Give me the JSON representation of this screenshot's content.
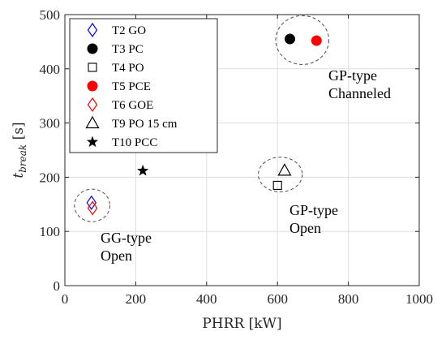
{
  "chart_data": {
    "type": "scatter",
    "xlabel": "PHRR [kW]",
    "ylabel_main": "t",
    "ylabel_sub": "break",
    "ylabel_unit": " [s]",
    "xlim": [
      0,
      1000
    ],
    "ylim": [
      0,
      500
    ],
    "xticks": [
      0,
      200,
      400,
      600,
      800,
      1000
    ],
    "yticks": [
      0,
      100,
      200,
      300,
      400,
      500
    ],
    "grid": true,
    "legend_position": "top-left",
    "series": [
      {
        "name": "T2 GO",
        "marker": "diamond-open",
        "color": "#0000ff",
        "points": [
          {
            "x": 75,
            "y": 153
          }
        ]
      },
      {
        "name": "T3 PC",
        "marker": "circle-filled",
        "color": "#000000",
        "points": [
          {
            "x": 635,
            "y": 455
          }
        ]
      },
      {
        "name": "T4 PO",
        "marker": "square-open",
        "color": "#000000",
        "points": [
          {
            "x": 600,
            "y": 185
          }
        ]
      },
      {
        "name": "T5 PCE",
        "marker": "circle-filled",
        "color": "#ff0000",
        "points": [
          {
            "x": 710,
            "y": 452
          }
        ]
      },
      {
        "name": "T6 GOE",
        "marker": "diamond-open",
        "color": "#ff0000",
        "points": [
          {
            "x": 78,
            "y": 143
          }
        ]
      },
      {
        "name": "T9 PO 15 cm",
        "marker": "triangle-open",
        "color": "#000000",
        "points": [
          {
            "x": 620,
            "y": 212
          }
        ]
      },
      {
        "name": "T10 PCC",
        "marker": "star-filled",
        "color": "#000000",
        "points": [
          {
            "x": 220,
            "y": 212
          }
        ]
      }
    ],
    "groups": [
      {
        "label_lines": [
          "GG-type",
          "Open"
        ],
        "center": {
          "x": 77,
          "y": 148
        },
        "radius": {
          "x": 50,
          "y": 30
        }
      },
      {
        "label_lines": [
          "GP-type",
          "Open"
        ],
        "center": {
          "x": 608,
          "y": 205
        },
        "radius": {
          "x": 62,
          "y": 32
        }
      },
      {
        "label_lines": [
          "GP-type",
          "Channeled"
        ],
        "center": {
          "x": 670,
          "y": 453
        },
        "radius": {
          "x": 75,
          "y": 45
        }
      }
    ]
  }
}
